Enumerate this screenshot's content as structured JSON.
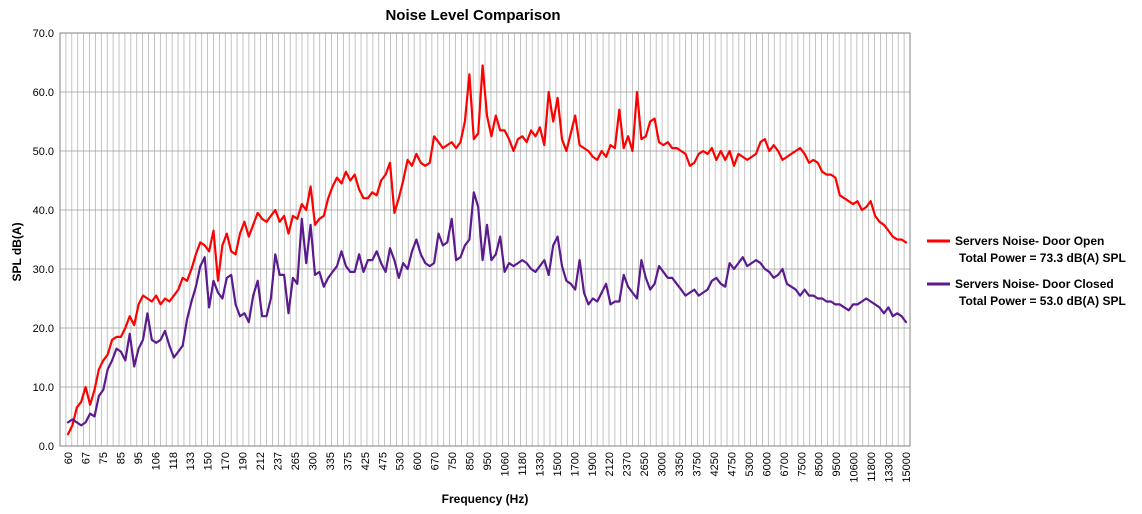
{
  "chart_data": {
    "type": "line",
    "title": "Noise Level Comparison",
    "xlabel": "Frequency (Hz)",
    "ylabel": "SPL dB(A)",
    "ylim": [
      0,
      70
    ],
    "yticks": [
      "0.0",
      "10.0",
      "20.0",
      "30.0",
      "40.0",
      "50.0",
      "60.0",
      "70.0"
    ],
    "grid": true,
    "legend_position": "right",
    "x_tick_labels": [
      "60",
      "67",
      "75",
      "85",
      "95",
      "106",
      "118",
      "133",
      "150",
      "170",
      "190",
      "212",
      "237",
      "265",
      "300",
      "335",
      "375",
      "425",
      "475",
      "530",
      "600",
      "670",
      "750",
      "850",
      "950",
      "1060",
      "1180",
      "1330",
      "1500",
      "1700",
      "1900",
      "2120",
      "2370",
      "2650",
      "3000",
      "3350",
      "3750",
      "4250",
      "4750",
      "5300",
      "6000",
      "6700",
      "7500",
      "8500",
      "9500",
      "10600",
      "11800",
      "13300",
      "15000"
    ],
    "series": [
      {
        "name": "Servers Noise- Door Open",
        "name_line2": "Total Power = 73.3 dB(A) SPL",
        "color": "#ff0000",
        "values": [
          2.0,
          3.5,
          6.5,
          7.5,
          10.0,
          7.0,
          9.5,
          13.0,
          14.5,
          15.5,
          18.0,
          18.5,
          18.5,
          20.0,
          22.0,
          20.5,
          24.0,
          25.5,
          25.0,
          24.5,
          25.5,
          24.0,
          25.0,
          24.5,
          25.5,
          26.5,
          28.5,
          28.0,
          30.0,
          32.5,
          34.5,
          34.0,
          33.0,
          36.5,
          28.0,
          34.0,
          36.0,
          33.0,
          32.5,
          36.0,
          38.0,
          35.5,
          37.5,
          39.5,
          38.5,
          38.0,
          39.0,
          40.0,
          38.0,
          39.0,
          36.0,
          39.0,
          38.5,
          41.0,
          40.0,
          44.0,
          37.5,
          38.5,
          39.0,
          42.0,
          44.0,
          45.5,
          44.5,
          46.5,
          45.0,
          46.0,
          43.5,
          42.0,
          42.0,
          43.0,
          42.5,
          45.0,
          46.0,
          48.0,
          39.5,
          42.0,
          45.0,
          48.5,
          47.5,
          49.5,
          48.0,
          47.5,
          48.0,
          52.5,
          51.5,
          50.5,
          51.0,
          51.5,
          50.5,
          51.5,
          55.0,
          63.0,
          52.0,
          53.0,
          64.5,
          56.0,
          52.5,
          56.0,
          53.5,
          53.5,
          52.0,
          50.0,
          52.0,
          52.5,
          51.5,
          53.5,
          52.5,
          54.0,
          51.0,
          60.0,
          55.0,
          59.0,
          52.0,
          50.0,
          53.0,
          56.0,
          51.0,
          50.5,
          50.0,
          49.0,
          48.5,
          50.0,
          49.0,
          51.0,
          50.5,
          57.0,
          50.5,
          52.5,
          50.0,
          60.0,
          52.0,
          52.5,
          55.0,
          55.5,
          51.5,
          51.0,
          51.5,
          50.5,
          50.5,
          50.0,
          49.5,
          47.5,
          48.0,
          49.5,
          50.0,
          49.5,
          50.5,
          48.5,
          50.0,
          48.5,
          50.0,
          47.5,
          49.5,
          49.0,
          48.5,
          49.0,
          49.5,
          51.5,
          52.0,
          50.0,
          51.0,
          50.0,
          48.5,
          49.0,
          49.5,
          50.0,
          50.5,
          49.5,
          48.0,
          48.5,
          48.0,
          46.5,
          46.0,
          46.0,
          45.5,
          42.5,
          42.0,
          41.5,
          41.0,
          41.5,
          40.0,
          40.5,
          41.5,
          39.0,
          38.0,
          37.5,
          36.5,
          35.5,
          35.0,
          35.0,
          34.5
        ]
      },
      {
        "name": "Servers Noise- Door Closed",
        "name_line2": "Total Power = 53.0 dB(A) SPL",
        "color": "#5b1a8e",
        "values": [
          4.0,
          4.5,
          4.0,
          3.5,
          4.0,
          5.5,
          5.0,
          8.5,
          9.5,
          13.0,
          14.5,
          16.5,
          16.0,
          14.5,
          19.0,
          13.5,
          16.5,
          18.0,
          22.5,
          18.0,
          17.5,
          18.0,
          19.5,
          17.0,
          15.0,
          16.0,
          17.0,
          21.5,
          24.5,
          27.0,
          30.5,
          32.0,
          23.5,
          28.0,
          26.0,
          25.0,
          28.5,
          29.0,
          24.0,
          22.0,
          22.5,
          21.0,
          25.5,
          28.0,
          22.0,
          22.0,
          25.0,
          32.5,
          29.0,
          29.0,
          22.5,
          28.5,
          27.5,
          38.5,
          31.0,
          37.5,
          29.0,
          29.5,
          27.0,
          28.5,
          29.5,
          30.5,
          33.0,
          30.5,
          29.5,
          29.5,
          32.5,
          29.5,
          31.5,
          31.5,
          33.0,
          31.0,
          29.5,
          33.5,
          31.5,
          28.5,
          31.0,
          30.0,
          33.0,
          35.0,
          32.5,
          31.0,
          30.5,
          31.0,
          36.0,
          34.0,
          34.5,
          38.5,
          31.5,
          32.0,
          34.0,
          35.0,
          43.0,
          40.5,
          31.5,
          37.5,
          31.5,
          32.5,
          35.5,
          29.5,
          31.0,
          30.5,
          31.0,
          31.5,
          31.0,
          30.0,
          29.5,
          30.5,
          31.5,
          29.0,
          34.0,
          35.5,
          30.5,
          28.0,
          27.5,
          26.5,
          31.5,
          26.0,
          24.0,
          25.0,
          24.5,
          26.0,
          27.5,
          24.0,
          24.5,
          24.5,
          29.0,
          27.0,
          26.0,
          25.0,
          31.5,
          28.5,
          26.5,
          27.5,
          30.5,
          29.5,
          28.5,
          28.5,
          27.5,
          26.5,
          25.5,
          26.0,
          26.5,
          25.5,
          26.0,
          26.5,
          28.0,
          28.5,
          27.5,
          27.0,
          31.0,
          30.0,
          31.0,
          32.0,
          30.5,
          31.0,
          31.5,
          31.0,
          30.0,
          29.5,
          28.5,
          29.0,
          30.0,
          27.5,
          27.0,
          26.5,
          25.5,
          26.5,
          25.5,
          25.5,
          25.0,
          25.0,
          24.5,
          24.5,
          24.0,
          24.0,
          23.5,
          23.0,
          24.0,
          24.0,
          24.5,
          25.0,
          24.5,
          24.0,
          23.5,
          22.5,
          23.5,
          22.0,
          22.5,
          22.0,
          21.0
        ]
      }
    ]
  }
}
